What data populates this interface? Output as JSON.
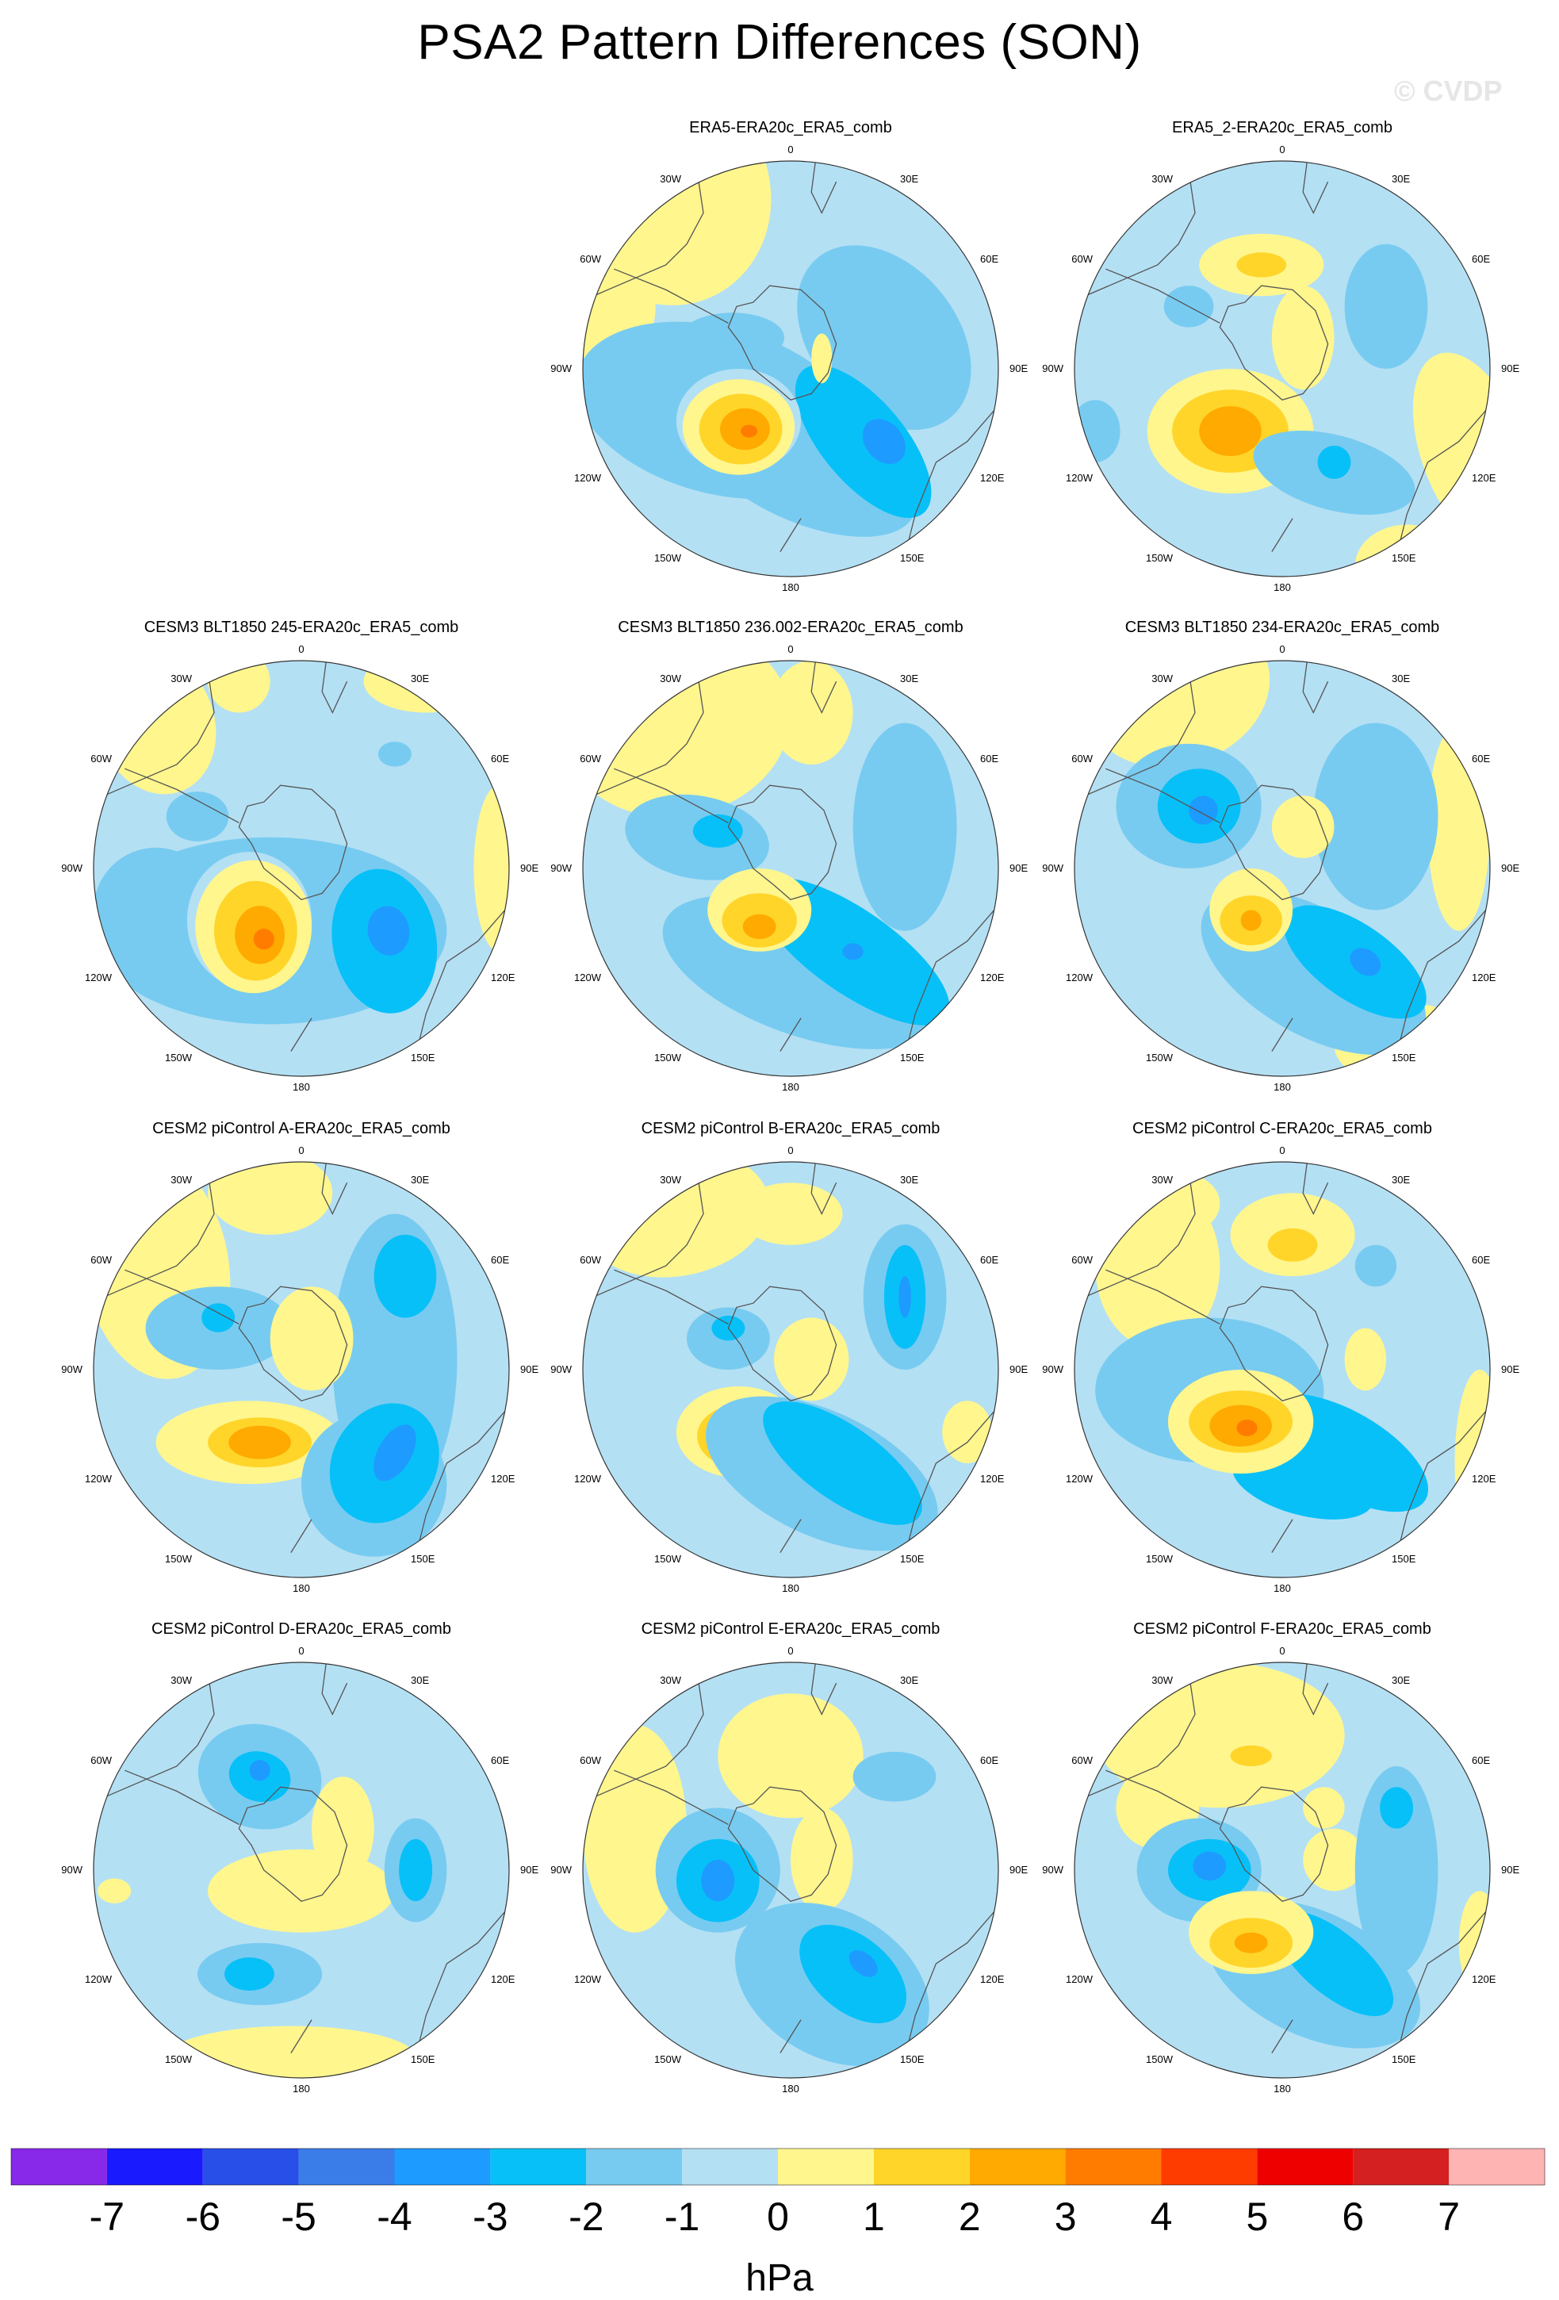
{
  "title": "PSA2 Pattern Differences (SON)",
  "watermark": "© CVDP",
  "colors": {
    "m7": "#8828e8",
    "m6": "#1a1aff",
    "m5": "#2850e8",
    "m4": "#3a7de8",
    "m3": "#1e9bff",
    "m2": "#08c0f8",
    "m1": "#78cbf0",
    "m0": "#b4e0f4",
    "p0": "#fff68e",
    "p1": "#ffd52a",
    "p2": "#ffaa00",
    "p3": "#ff7c00",
    "p4": "#ff3c00",
    "p5": "#ee0000",
    "p6": "#d42020",
    "p7": "#ffb4b4",
    "coast": "#555555"
  },
  "map_labels": {
    "lon_0": "0",
    "lon_30e": "30E",
    "lon_60e": "60E",
    "lon_90e": "90E",
    "lon_120e": "120E",
    "lon_150e": "150E",
    "lon_180": "180",
    "lon_150w": "150W",
    "lon_120w": "120W",
    "lon_90w": "90W",
    "lon_60w": "60W",
    "lon_30w": "30W"
  },
  "panels": [
    {
      "title": "ERA5-ERA20c_ERA5_comb",
      "features": [
        [
          "p0",
          -0.6,
          0.85,
          0.5,
          0.55,
          20
        ],
        [
          "p0",
          -0.9,
          0.3,
          0.25,
          0.3,
          0
        ],
        [
          "m1",
          -0.35,
          -0.2,
          0.7,
          0.4,
          -15
        ],
        [
          "m1",
          0.45,
          0.15,
          0.35,
          0.5,
          40
        ],
        [
          "m1",
          0.05,
          -0.45,
          0.6,
          0.28,
          -25
        ],
        [
          "m2",
          0.35,
          -0.35,
          0.45,
          0.2,
          -50
        ],
        [
          "m3",
          0.45,
          -0.35,
          0.12,
          0.09,
          -50
        ],
        [
          "m1",
          -0.28,
          0.15,
          0.25,
          0.12,
          0
        ],
        [
          "m0",
          -0.25,
          -0.25,
          0.3,
          0.25,
          0
        ],
        [
          "p0",
          -0.25,
          -0.28,
          0.27,
          0.23,
          0
        ],
        [
          "p1",
          -0.24,
          -0.29,
          0.2,
          0.17,
          0
        ],
        [
          "p2",
          -0.22,
          -0.29,
          0.12,
          0.1,
          0
        ],
        [
          "p3",
          -0.2,
          -0.3,
          0.04,
          0.03,
          0
        ],
        [
          "p0",
          0.15,
          0.05,
          0.05,
          0.12,
          0
        ]
      ]
    },
    {
      "title": "ERA5_2-ERA20c_ERA5_comb",
      "features": [
        [
          "p0",
          -0.1,
          0.5,
          0.3,
          0.15,
          0
        ],
        [
          "p1",
          -0.1,
          0.5,
          0.12,
          0.06,
          0
        ],
        [
          "m1",
          0.5,
          0.3,
          0.2,
          0.3,
          0
        ],
        [
          "p0",
          0.1,
          0.15,
          0.15,
          0.25,
          0
        ],
        [
          "p0",
          0.92,
          -0.4,
          0.25,
          0.5,
          20
        ],
        [
          "p0",
          -0.25,
          -0.3,
          0.4,
          0.3,
          0
        ],
        [
          "p1",
          -0.25,
          -0.3,
          0.28,
          0.2,
          0
        ],
        [
          "p2",
          -0.25,
          -0.3,
          0.15,
          0.12,
          0
        ],
        [
          "m1",
          -0.9,
          -0.3,
          0.12,
          0.15,
          0
        ],
        [
          "m1",
          0.25,
          -0.5,
          0.4,
          0.18,
          -15
        ],
        [
          "m2",
          0.25,
          -0.45,
          0.08,
          0.08,
          0
        ],
        [
          "m1",
          -0.45,
          0.3,
          0.12,
          0.1,
          0
        ],
        [
          "p0",
          0.6,
          -0.95,
          0.25,
          0.2,
          0
        ]
      ]
    },
    {
      "title": "CESM3 BLT1850 245-ERA20c_ERA5_comb",
      "features": [
        [
          "p0",
          -0.7,
          0.7,
          0.28,
          0.35,
          20
        ],
        [
          "p0",
          -0.3,
          0.9,
          0.15,
          0.15,
          0
        ],
        [
          "p0",
          0.6,
          0.9,
          0.3,
          0.15,
          0
        ],
        [
          "p0",
          0.95,
          0.0,
          0.12,
          0.4,
          0
        ],
        [
          "m1",
          -0.5,
          0.25,
          0.15,
          0.12,
          0
        ],
        [
          "m1",
          -0.15,
          -0.3,
          0.85,
          0.45,
          0
        ],
        [
          "m1",
          -0.7,
          -0.2,
          0.3,
          0.3,
          0
        ],
        [
          "m2",
          0.4,
          -0.35,
          0.25,
          0.35,
          10
        ],
        [
          "m3",
          0.42,
          -0.3,
          0.1,
          0.12,
          10
        ],
        [
          "m0",
          -0.25,
          -0.25,
          0.3,
          0.33,
          0
        ],
        [
          "p0",
          -0.23,
          -0.28,
          0.28,
          0.32,
          0
        ],
        [
          "p1",
          -0.22,
          -0.3,
          0.2,
          0.24,
          0
        ],
        [
          "p2",
          -0.2,
          -0.32,
          0.12,
          0.14,
          0
        ],
        [
          "p3",
          -0.18,
          -0.34,
          0.05,
          0.05,
          0
        ],
        [
          "m1",
          0.45,
          0.55,
          0.08,
          0.06,
          0
        ]
      ]
    },
    {
      "title": "CESM3 BLT1850 236.002-ERA20c_ERA5_comb",
      "features": [
        [
          "p0",
          -0.55,
          0.7,
          0.55,
          0.45,
          10
        ],
        [
          "p0",
          0.1,
          0.75,
          0.2,
          0.25,
          0
        ],
        [
          "m1",
          0.55,
          0.2,
          0.25,
          0.5,
          0
        ],
        [
          "m1",
          -0.45,
          0.15,
          0.35,
          0.2,
          -10
        ],
        [
          "m2",
          -0.35,
          0.18,
          0.12,
          0.08,
          0
        ],
        [
          "m1",
          0.05,
          -0.5,
          0.7,
          0.3,
          -20
        ],
        [
          "m2",
          0.3,
          -0.4,
          0.55,
          0.2,
          -35
        ],
        [
          "m3",
          0.3,
          -0.4,
          0.05,
          0.04,
          0
        ],
        [
          "p0",
          -0.15,
          -0.2,
          0.25,
          0.2,
          0
        ],
        [
          "p1",
          -0.15,
          -0.25,
          0.18,
          0.13,
          0
        ],
        [
          "p2",
          -0.15,
          -0.28,
          0.08,
          0.06,
          0
        ],
        [
          "p0",
          0.9,
          -0.75,
          0.15,
          0.15,
          0
        ]
      ]
    },
    {
      "title": "CESM3 BLT1850 234-ERA20c_ERA5_comb",
      "features": [
        [
          "p0",
          -0.5,
          0.85,
          0.45,
          0.35,
          20
        ],
        [
          "p0",
          0.85,
          0.2,
          0.15,
          0.5,
          0
        ],
        [
          "p0",
          0.6,
          -0.85,
          0.35,
          0.2,
          0
        ],
        [
          "m1",
          0.45,
          0.25,
          0.3,
          0.45,
          0
        ],
        [
          "m1",
          -0.45,
          0.3,
          0.35,
          0.3,
          0
        ],
        [
          "m2",
          -0.4,
          0.3,
          0.2,
          0.18,
          0
        ],
        [
          "m3",
          -0.38,
          0.28,
          0.07,
          0.07,
          0
        ],
        [
          "p0",
          0.1,
          0.2,
          0.15,
          0.15,
          0
        ],
        [
          "m1",
          0.15,
          -0.5,
          0.6,
          0.3,
          -30
        ],
        [
          "m2",
          0.35,
          -0.45,
          0.4,
          0.18,
          -35
        ],
        [
          "m3",
          0.4,
          -0.45,
          0.08,
          0.06,
          -35
        ],
        [
          "p0",
          -0.15,
          -0.2,
          0.2,
          0.2,
          0
        ],
        [
          "p1",
          -0.15,
          -0.25,
          0.15,
          0.12,
          0
        ],
        [
          "p2",
          -0.15,
          -0.25,
          0.05,
          0.05,
          0
        ]
      ]
    },
    {
      "title": "CESM2 piControl A-ERA20c_ERA5_comb",
      "features": [
        [
          "p0",
          -0.7,
          0.5,
          0.35,
          0.55,
          10
        ],
        [
          "p0",
          -0.15,
          0.85,
          0.3,
          0.2,
          0
        ],
        [
          "m1",
          0.45,
          0.05,
          0.3,
          0.7,
          0
        ],
        [
          "m2",
          0.5,
          0.45,
          0.15,
          0.2,
          0
        ],
        [
          "m1",
          -0.4,
          0.2,
          0.35,
          0.2,
          0
        ],
        [
          "m2",
          -0.4,
          0.25,
          0.08,
          0.07,
          0
        ],
        [
          "p0",
          0.05,
          0.15,
          0.2,
          0.25,
          0
        ],
        [
          "p0",
          -0.25,
          -0.35,
          0.45,
          0.2,
          0
        ],
        [
          "p1",
          -0.2,
          -0.35,
          0.25,
          0.12,
          0
        ],
        [
          "p2",
          -0.2,
          -0.35,
          0.15,
          0.08,
          0
        ],
        [
          "m1",
          0.35,
          -0.55,
          0.35,
          0.35,
          -30
        ],
        [
          "m2",
          0.4,
          -0.45,
          0.25,
          0.3,
          -30
        ],
        [
          "m3",
          0.45,
          -0.4,
          0.08,
          0.15,
          -30
        ]
      ]
    },
    {
      "title": "CESM2 piControl B-ERA20c_ERA5_comb",
      "features": [
        [
          "p0",
          -0.55,
          0.75,
          0.45,
          0.3,
          10
        ],
        [
          "p0",
          0.0,
          0.75,
          0.25,
          0.15,
          0
        ],
        [
          "m1",
          0.55,
          0.35,
          0.2,
          0.35,
          0
        ],
        [
          "m2",
          0.55,
          0.35,
          0.1,
          0.25,
          0
        ],
        [
          "m3",
          0.55,
          0.35,
          0.03,
          0.1,
          0
        ],
        [
          "m1",
          -0.3,
          0.15,
          0.2,
          0.15,
          0
        ],
        [
          "m2",
          -0.3,
          0.2,
          0.08,
          0.06,
          0
        ],
        [
          "p0",
          0.1,
          0.05,
          0.18,
          0.2,
          0
        ],
        [
          "p0",
          -0.25,
          -0.3,
          0.3,
          0.22,
          0
        ],
        [
          "p1",
          -0.25,
          -0.32,
          0.2,
          0.15,
          0
        ],
        [
          "p2",
          -0.25,
          -0.33,
          0.12,
          0.1,
          0
        ],
        [
          "m1",
          0.15,
          -0.5,
          0.6,
          0.3,
          -25
        ],
        [
          "m2",
          0.25,
          -0.45,
          0.45,
          0.18,
          -35
        ],
        [
          "p0",
          0.85,
          -0.3,
          0.12,
          0.15,
          0
        ]
      ]
    },
    {
      "title": "CESM2 piControl C-ERA20c_ERA5_comb",
      "features": [
        [
          "p0",
          -0.6,
          0.5,
          0.3,
          0.4,
          0
        ],
        [
          "p0",
          -0.5,
          0.8,
          0.2,
          0.15,
          0
        ],
        [
          "p0",
          0.05,
          0.65,
          0.3,
          0.2,
          0
        ],
        [
          "p1",
          0.05,
          0.6,
          0.12,
          0.08,
          0
        ],
        [
          "m1",
          0.45,
          0.5,
          0.1,
          0.1,
          0
        ],
        [
          "p0",
          0.4,
          0.05,
          0.1,
          0.15,
          0
        ],
        [
          "p0",
          0.95,
          -0.45,
          0.12,
          0.45,
          0
        ],
        [
          "m1",
          -0.35,
          -0.1,
          0.55,
          0.35,
          0
        ],
        [
          "m2",
          0.3,
          -0.4,
          0.45,
          0.2,
          -30
        ],
        [
          "m2",
          0.1,
          -0.55,
          0.35,
          0.15,
          -15
        ],
        [
          "p0",
          -0.2,
          -0.25,
          0.35,
          0.25,
          0
        ],
        [
          "p1",
          -0.2,
          -0.25,
          0.25,
          0.15,
          0
        ],
        [
          "p2",
          -0.2,
          -0.27,
          0.15,
          0.1,
          0
        ],
        [
          "p3",
          -0.17,
          -0.28,
          0.05,
          0.04,
          0
        ]
      ]
    },
    {
      "title": "CESM2 piControl D-ERA20c_ERA5_comb",
      "features": [
        [
          "m1",
          -0.2,
          0.45,
          0.3,
          0.25,
          -15
        ],
        [
          "m2",
          -0.2,
          0.45,
          0.15,
          0.12,
          -15
        ],
        [
          "m3",
          -0.2,
          0.48,
          0.05,
          0.05,
          -15
        ],
        [
          "p0",
          0.2,
          0.2,
          0.15,
          0.25,
          0
        ],
        [
          "p0",
          0.0,
          -0.1,
          0.45,
          0.2,
          0
        ],
        [
          "m1",
          0.55,
          0.0,
          0.15,
          0.25,
          0
        ],
        [
          "m2",
          0.55,
          0.0,
          0.08,
          0.15,
          0
        ],
        [
          "m1",
          -0.2,
          -0.5,
          0.3,
          0.15,
          0
        ],
        [
          "m2",
          -0.25,
          -0.5,
          0.12,
          0.08,
          0
        ],
        [
          "p0",
          -0.05,
          -0.9,
          0.6,
          0.15,
          0
        ],
        [
          "p0",
          -0.9,
          -0.1,
          0.08,
          0.06,
          0
        ]
      ]
    },
    {
      "title": "CESM2 piControl E-ERA20c_ERA5_comb",
      "features": [
        [
          "p0",
          -0.75,
          0.2,
          0.25,
          0.5,
          0
        ],
        [
          "p0",
          0.0,
          0.55,
          0.35,
          0.3,
          0
        ],
        [
          "m1",
          0.5,
          0.45,
          0.2,
          0.12,
          0
        ],
        [
          "p0",
          0.15,
          0.05,
          0.15,
          0.25,
          0
        ],
        [
          "m1",
          -0.35,
          0.0,
          0.3,
          0.3,
          0
        ],
        [
          "m2",
          -0.35,
          -0.05,
          0.2,
          0.2,
          0
        ],
        [
          "m3",
          -0.35,
          -0.05,
          0.08,
          0.1,
          0
        ],
        [
          "p0",
          -0.05,
          -0.35,
          0.15,
          0.15,
          0
        ],
        [
          "p1",
          -0.05,
          -0.35,
          0.1,
          0.1,
          0
        ],
        [
          "m1",
          0.2,
          -0.55,
          0.5,
          0.35,
          -30
        ],
        [
          "m2",
          0.3,
          -0.5,
          0.3,
          0.18,
          -40
        ],
        [
          "m3",
          0.35,
          -0.45,
          0.08,
          0.05,
          -40
        ]
      ]
    },
    {
      "title": "CESM2 piControl F-ERA20c_ERA5_comb",
      "features": [
        [
          "p0",
          -0.3,
          0.65,
          0.6,
          0.35,
          0
        ],
        [
          "p1",
          -0.15,
          0.55,
          0.1,
          0.05,
          0
        ],
        [
          "p0",
          -0.6,
          0.3,
          0.2,
          0.2,
          0
        ],
        [
          "m1",
          -0.4,
          0.0,
          0.3,
          0.25,
          0
        ],
        [
          "m2",
          -0.35,
          0.0,
          0.2,
          0.15,
          0
        ],
        [
          "m3",
          -0.35,
          0.02,
          0.08,
          0.07,
          0
        ],
        [
          "p0",
          0.25,
          0.05,
          0.15,
          0.15,
          0
        ],
        [
          "p0",
          0.2,
          0.3,
          0.1,
          0.1,
          0
        ],
        [
          "m1",
          0.55,
          0.0,
          0.2,
          0.5,
          0
        ],
        [
          "m2",
          0.55,
          0.3,
          0.08,
          0.1,
          0
        ],
        [
          "m1",
          0.15,
          -0.5,
          0.55,
          0.3,
          -25
        ],
        [
          "m2",
          0.25,
          -0.45,
          0.35,
          0.15,
          -40
        ],
        [
          "p0",
          -0.15,
          -0.3,
          0.3,
          0.2,
          0
        ],
        [
          "p1",
          -0.15,
          -0.35,
          0.2,
          0.12,
          0
        ],
        [
          "p2",
          -0.15,
          -0.35,
          0.08,
          0.05,
          0
        ],
        [
          "p0",
          0.95,
          -0.35,
          0.1,
          0.25,
          0
        ]
      ]
    }
  ],
  "colorbar": {
    "labels": [
      "-7",
      "-6",
      "-5",
      "-4",
      "-3",
      "-2",
      "-1",
      "0",
      "1",
      "2",
      "3",
      "4",
      "5",
      "6",
      "7"
    ],
    "colors": [
      "m7",
      "m6",
      "m5",
      "m4",
      "m3",
      "m2",
      "m1",
      "m0",
      "p0",
      "p1",
      "p2",
      "p3",
      "p4",
      "p5",
      "p6",
      "p7"
    ],
    "units": "hPa"
  }
}
